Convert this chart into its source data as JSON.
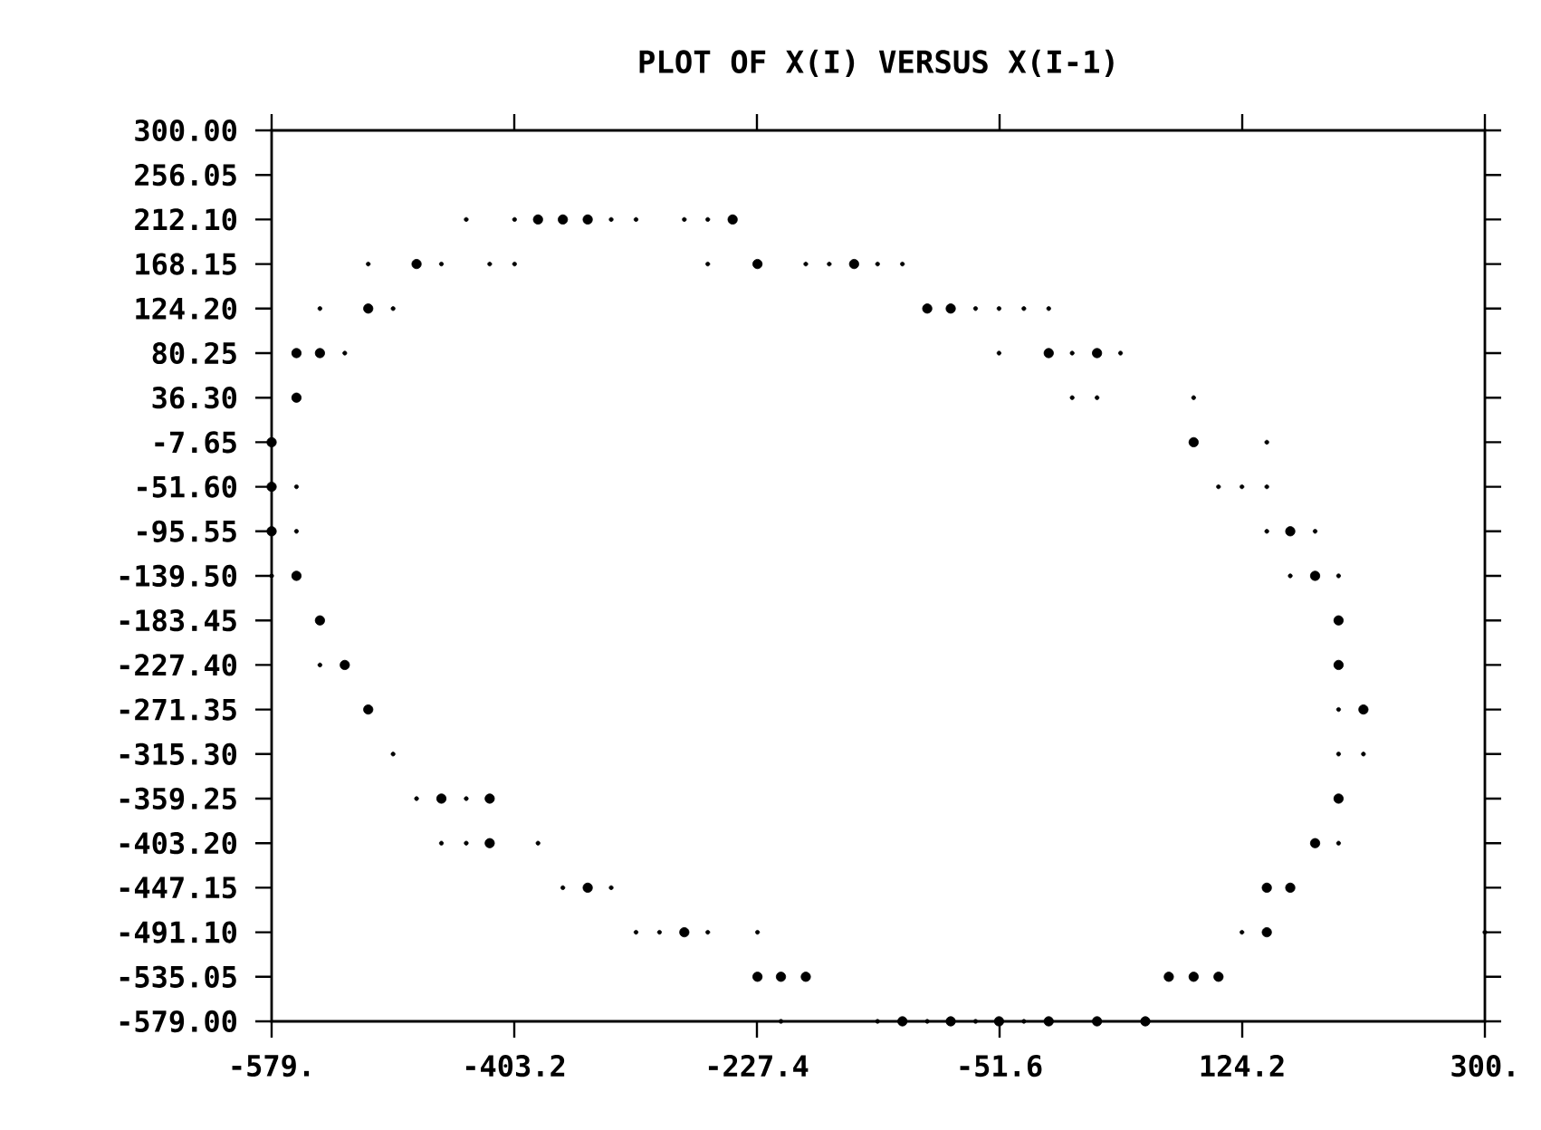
{
  "chart_data": {
    "type": "scatter",
    "title": "PLOT OF X(I) VERSUS X(I-1)",
    "xlim": [
      -579,
      300
    ],
    "ylim": [
      -579,
      300
    ],
    "xticks": [
      {
        "value": -579,
        "label": "-579."
      },
      -403.2,
      -227.4,
      -51.6,
      124.2,
      {
        "value": 300,
        "label": "300."
      }
    ],
    "yticks": [
      {
        "value": 300,
        "label": "300.00"
      },
      256.05,
      {
        "value": 212.1,
        "label": "212.10"
      },
      168.15,
      {
        "value": 124.2,
        "label": "124.20"
      },
      80.25,
      {
        "value": 36.3,
        "label": "36.30"
      },
      -7.65,
      {
        "value": -51.6,
        "label": "-51.60"
      },
      -95.55,
      {
        "value": -139.5,
        "label": "-139.50"
      },
      -183.45,
      {
        "value": -227.4,
        "label": "-227.40"
      },
      -271.35,
      {
        "value": -315.3,
        "label": "-315.30"
      },
      -359.25,
      {
        "value": -403.2,
        "label": "-403.20"
      },
      -447.15,
      {
        "value": -491.1,
        "label": "-491.10"
      },
      -535.05,
      {
        "value": -579,
        "label": "-579.00"
      }
    ],
    "series": [
      {
        "color": "#000000",
        "x": [
          212,
          194,
          194,
          194,
          177,
          177,
          159,
          159,
          142,
          142,
          107,
          89,
          89,
          71,
          54,
          19,
          19,
          -16,
          -16,
          -52,
          -87,
          -87,
          -104,
          -122,
          -157,
          -192,
          -210,
          -227,
          -227,
          -245,
          -280,
          -350,
          -350,
          -368,
          -386,
          -421,
          -421,
          -456,
          -474,
          -509,
          -509,
          -526,
          -544,
          -544,
          -561,
          -561,
          -561,
          -579,
          -579,
          -579
        ],
        "values": [
          -271.35,
          -183.45,
          -227.4,
          -359.25,
          -139.5,
          -403.2,
          -95.55,
          -447.15,
          -447.15,
          -491.1,
          -535.05,
          -7.65,
          -535.05,
          -535.05,
          -579,
          80.25,
          -579,
          80.25,
          -579,
          -579,
          124.2,
          -579,
          124.2,
          -579,
          168.15,
          -535.05,
          -535.05,
          168.15,
          -535.05,
          212.1,
          -491.1,
          212.1,
          -447.15,
          212.1,
          212.1,
          -359.25,
          -403.2,
          -359.25,
          168.15,
          124.2,
          -271.35,
          -227.4,
          80.25,
          -183.45,
          80.25,
          36.3,
          -139.5,
          -7.65,
          -51.6,
          -95.55
        ]
      },
      {
        "color": "#000000",
        "x": [
          300,
          212,
          194,
          194,
          194,
          194,
          177,
          159,
          142,
          142,
          142,
          124,
          124,
          107,
          89,
          36,
          19,
          1,
          1,
          -16,
          -34,
          -34,
          -52,
          -52,
          -69,
          -69,
          -104,
          -122,
          -140,
          -140,
          -175,
          -192,
          -210,
          -227,
          -263,
          -263,
          -263,
          -280,
          -298,
          -315,
          -315,
          -333,
          -333,
          -368,
          -386,
          -403,
          -403,
          -421,
          -438,
          -438,
          -438,
          -456,
          -456,
          -474,
          -491,
          -491,
          -509,
          -526,
          -544,
          -544,
          -561,
          -561,
          -579
        ],
        "values": [
          -491.1,
          -315.3,
          -139.5,
          -271.35,
          -315.3,
          -403.2,
          -95.55,
          -139.5,
          -7.65,
          -51.6,
          -95.55,
          -51.6,
          -491.1,
          -51.6,
          36.3,
          80.25,
          36.3,
          80.25,
          36.3,
          124.2,
          124.2,
          -579,
          124.2,
          80.25,
          124.2,
          -579,
          -579,
          168.15,
          168.15,
          -579,
          168.15,
          168.15,
          -579,
          -491.1,
          168.15,
          212.1,
          -491.1,
          212.1,
          -491.1,
          212.1,
          -491.1,
          212.1,
          -447.15,
          -447.15,
          -403.2,
          212.1,
          168.15,
          168.15,
          212.1,
          -359.25,
          -403.2,
          168.15,
          -403.2,
          -359.25,
          124.2,
          -315.3,
          168.15,
          80.25,
          124.2,
          -227.4,
          -51.6,
          -95.55,
          -139.5
        ]
      }
    ]
  }
}
